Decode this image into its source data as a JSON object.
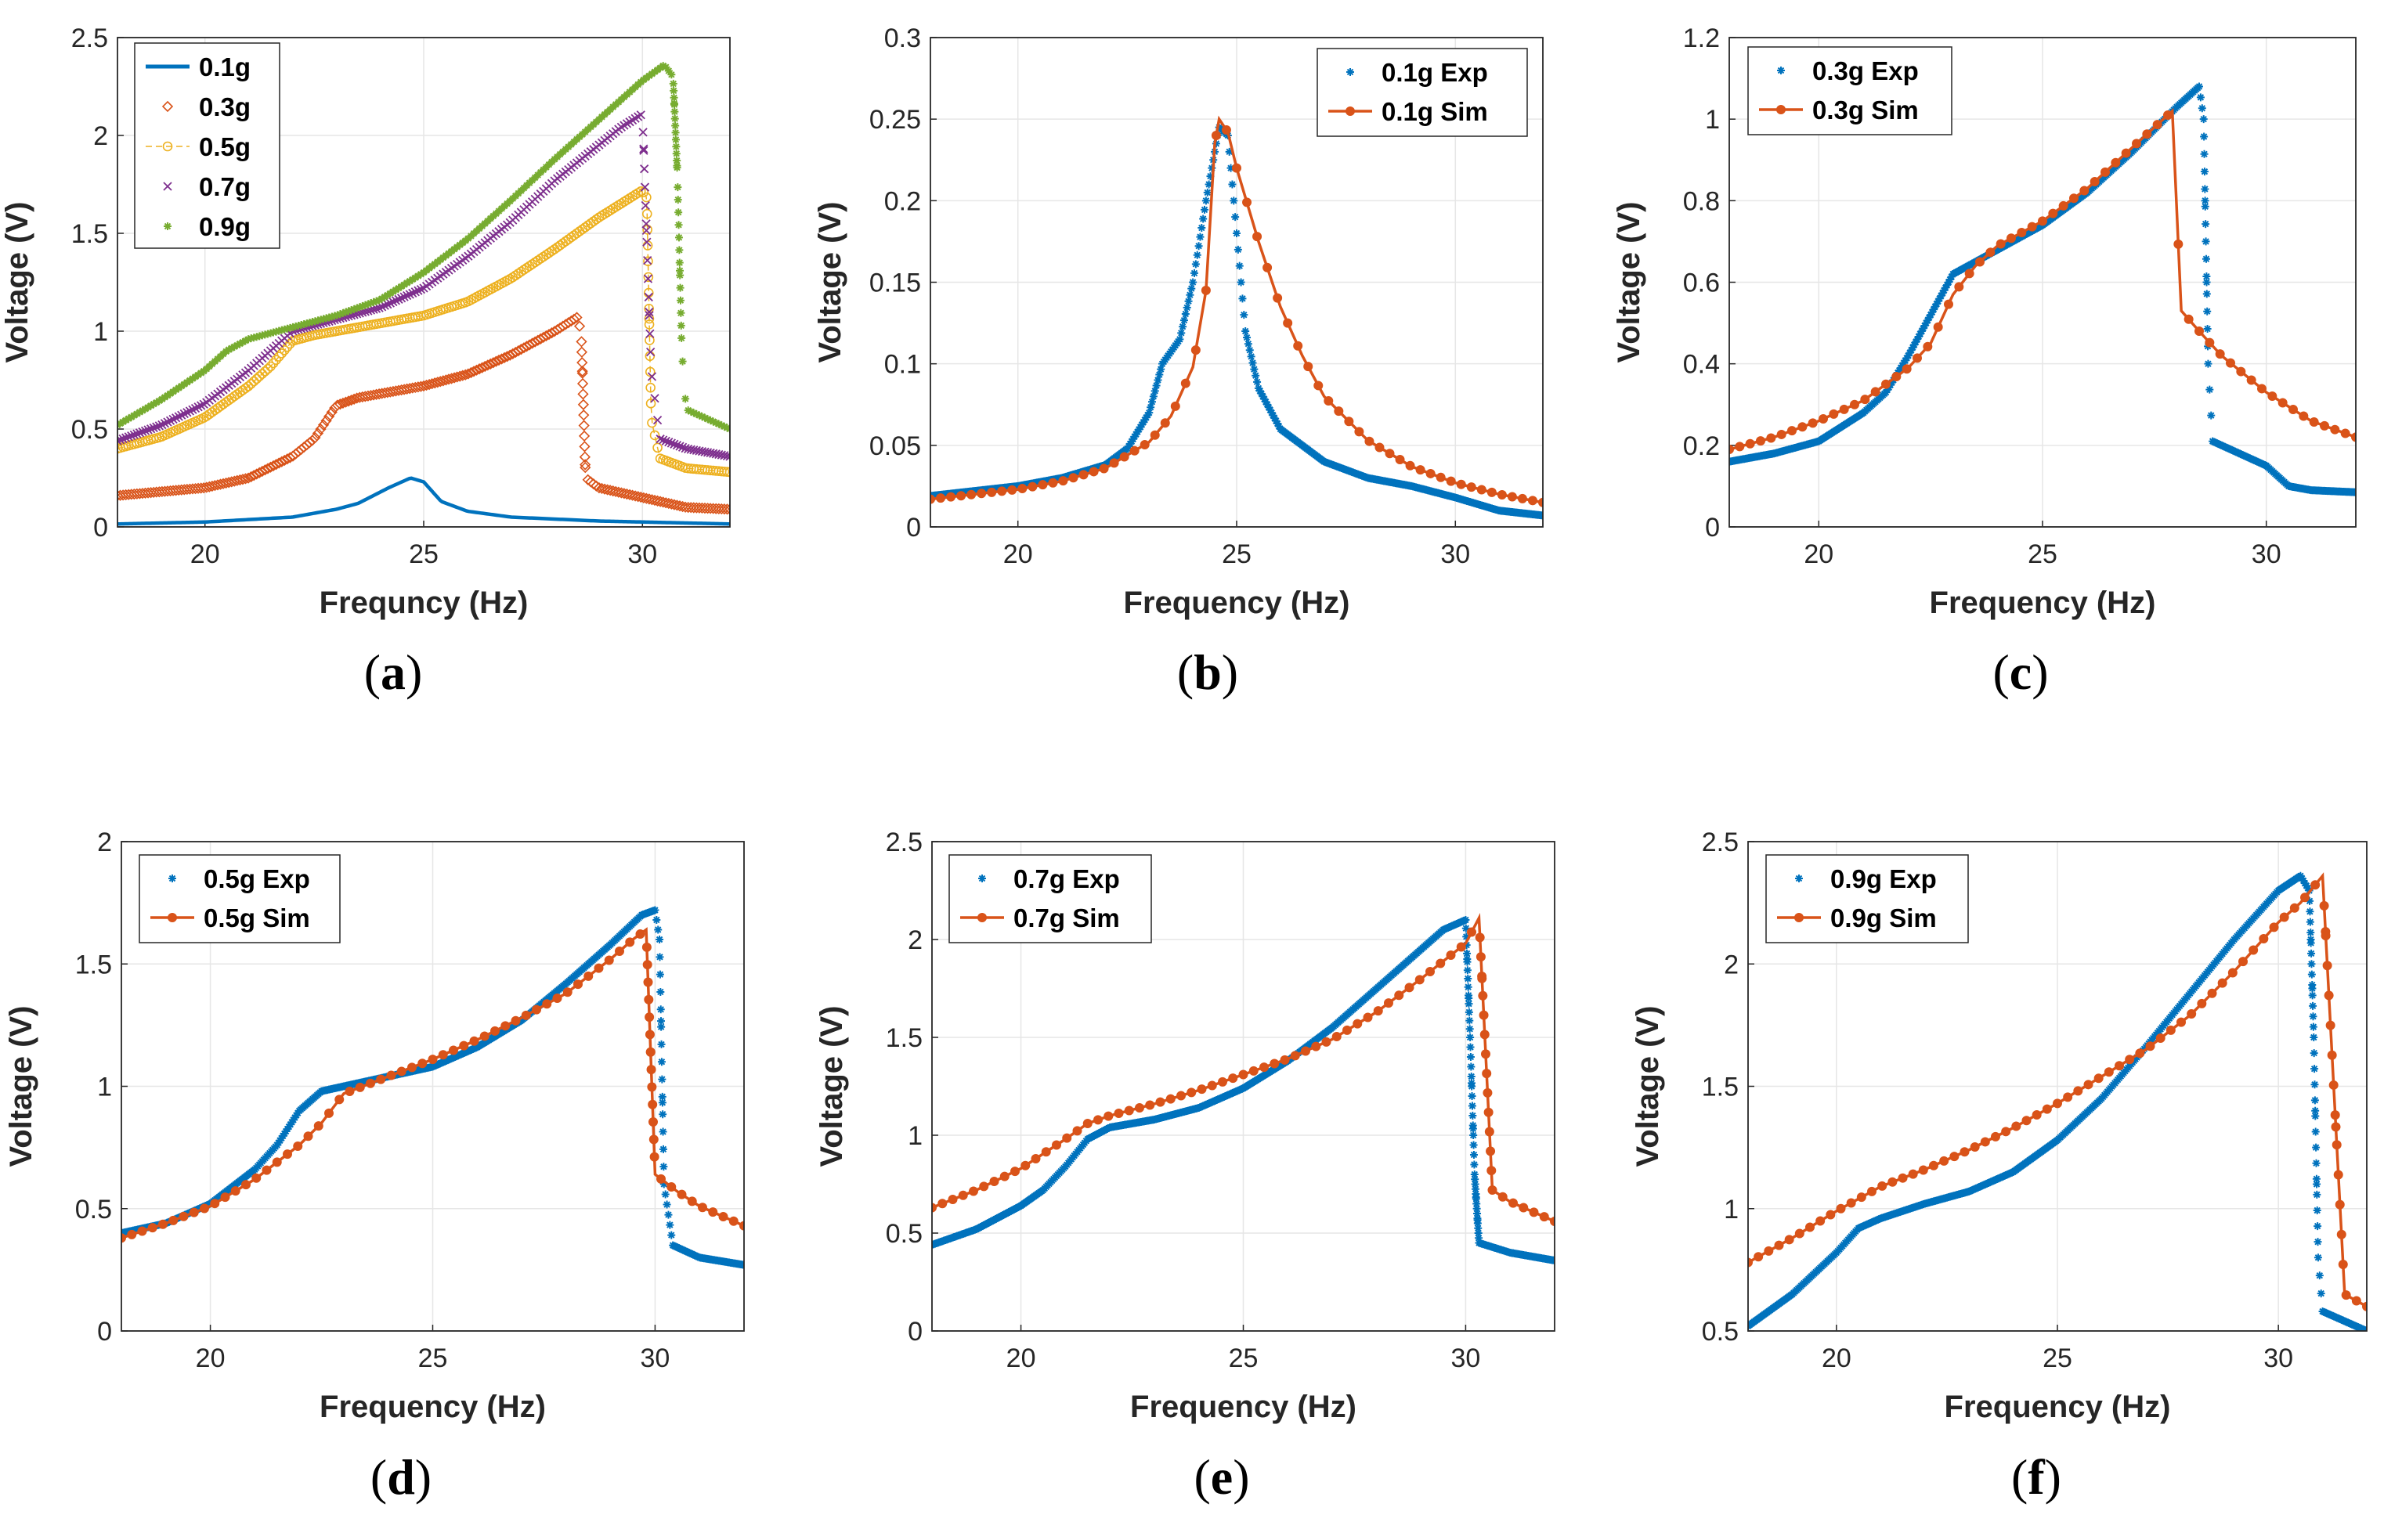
{
  "chart_data": [
    {
      "id": "a",
      "type": "line",
      "panel_label": "a",
      "title": "",
      "xlabel": "Frequncy (Hz)",
      "ylabel": "Voltage (V)",
      "xlim": [
        18,
        32
      ],
      "ylim": [
        0,
        2.5
      ],
      "xticks": [
        "20",
        "25",
        "30"
      ],
      "yticks": [
        "0",
        "0.5",
        "1",
        "1.5",
        "2",
        "2.5"
      ],
      "grid": true,
      "legend_position": "top-left",
      "series": [
        {
          "name": "0.1g",
          "color": "#0072BD",
          "style": "line",
          "x": [
            18,
            20,
            22,
            23,
            23.5,
            24.2,
            24.7,
            25.0,
            25.4,
            26,
            27,
            29,
            32
          ],
          "y": [
            0.015,
            0.025,
            0.05,
            0.09,
            0.12,
            0.2,
            0.25,
            0.23,
            0.13,
            0.08,
            0.05,
            0.03,
            0.015
          ]
        },
        {
          "name": "0.3g",
          "color": "#D95319",
          "style": "markers-diamond",
          "x": [
            18,
            20,
            21,
            22,
            22.5,
            23,
            23.5,
            24,
            25,
            26,
            27,
            28,
            28.5,
            28.6,
            28.7,
            29,
            30,
            31,
            32
          ],
          "y": [
            0.16,
            0.2,
            0.25,
            0.36,
            0.45,
            0.62,
            0.66,
            0.68,
            0.72,
            0.78,
            0.88,
            1.0,
            1.07,
            1.0,
            0.25,
            0.2,
            0.15,
            0.1,
            0.09
          ]
        },
        {
          "name": "0.5g",
          "color": "#EDB120",
          "style": "markers-circle-line",
          "x": [
            18,
            19,
            20,
            21,
            21.5,
            22,
            22.5,
            23,
            24,
            25,
            26,
            27,
            28,
            29,
            30,
            30.1,
            30.2,
            30.4,
            31,
            32
          ],
          "y": [
            0.4,
            0.46,
            0.56,
            0.72,
            0.82,
            0.95,
            0.98,
            1.0,
            1.04,
            1.08,
            1.15,
            1.27,
            1.42,
            1.58,
            1.72,
            1.68,
            0.55,
            0.35,
            0.3,
            0.28
          ]
        },
        {
          "name": "0.7g",
          "color": "#7E2F8E",
          "style": "markers-x",
          "x": [
            18,
            19,
            20,
            21,
            21.5,
            22,
            23,
            24,
            25,
            26,
            27,
            28,
            29,
            29.5,
            30.0,
            30.2,
            30.4,
            31,
            32
          ],
          "y": [
            0.44,
            0.52,
            0.63,
            0.8,
            0.9,
            1.0,
            1.06,
            1.12,
            1.22,
            1.38,
            1.56,
            1.77,
            1.95,
            2.04,
            2.11,
            0.8,
            0.45,
            0.4,
            0.36
          ]
        },
        {
          "name": "0.9g",
          "color": "#77AC30",
          "style": "markers-asterisk",
          "x": [
            18,
            19,
            20,
            20.5,
            21,
            22,
            23,
            24,
            25,
            26,
            27,
            28,
            29,
            30,
            30.5,
            30.7,
            30.8,
            30.9,
            31,
            32
          ],
          "y": [
            0.52,
            0.65,
            0.8,
            0.9,
            0.96,
            1.02,
            1.08,
            1.16,
            1.3,
            1.47,
            1.67,
            1.88,
            2.08,
            2.28,
            2.36,
            2.3,
            1.8,
            0.9,
            0.6,
            0.5
          ]
        }
      ]
    },
    {
      "id": "b",
      "type": "line",
      "panel_label": "b",
      "title": "",
      "xlabel": "Frequency (Hz)",
      "ylabel": "Voltage (V)",
      "xlim": [
        18,
        32
      ],
      "ylim": [
        0,
        0.3
      ],
      "xticks": [
        "20",
        "25",
        "30"
      ],
      "yticks": [
        "0",
        "0.05",
        "0.1",
        "0.15",
        "0.2",
        "0.25",
        "0.3"
      ],
      "grid": true,
      "legend_position": "top-right",
      "series": [
        {
          "name": "0.1g Exp",
          "color": "#0072BD",
          "style": "markers-asterisk-dense",
          "x": [
            18,
            20,
            21,
            22,
            22.5,
            23,
            23.3,
            23.7,
            24,
            24.3,
            24.6,
            24.8,
            25.0,
            25.2,
            25.5,
            26,
            27,
            28,
            29,
            30,
            31,
            32
          ],
          "y": [
            0.019,
            0.025,
            0.03,
            0.038,
            0.048,
            0.07,
            0.1,
            0.115,
            0.15,
            0.2,
            0.245,
            0.24,
            0.18,
            0.12,
            0.085,
            0.06,
            0.04,
            0.03,
            0.025,
            0.018,
            0.01,
            0.007
          ]
        },
        {
          "name": "0.1g Sim",
          "color": "#D95319",
          "style": "line-dot-markers",
          "x": [
            18,
            19,
            20,
            21,
            22,
            23,
            23.5,
            24,
            24.3,
            24.5,
            24.6,
            24.8,
            25,
            25.5,
            26,
            26.5,
            27,
            28,
            29,
            30,
            31,
            32
          ],
          "y": [
            0.017,
            0.02,
            0.023,
            0.028,
            0.036,
            0.052,
            0.068,
            0.098,
            0.145,
            0.235,
            0.25,
            0.242,
            0.22,
            0.175,
            0.135,
            0.105,
            0.08,
            0.053,
            0.037,
            0.027,
            0.02,
            0.015
          ]
        }
      ]
    },
    {
      "id": "c",
      "type": "line",
      "panel_label": "c",
      "title": "",
      "xlabel": "Frequency (Hz)",
      "ylabel": "Voltage (V)",
      "xlim": [
        18,
        32
      ],
      "ylim": [
        0,
        1.2
      ],
      "xticks": [
        "20",
        "25",
        "30"
      ],
      "yticks": [
        "0",
        "0.2",
        "0.4",
        "0.6",
        "0.8",
        "1",
        "1.2"
      ],
      "grid": true,
      "legend_position": "top-left",
      "series": [
        {
          "name": "0.3g Exp",
          "color": "#0072BD",
          "style": "markers-asterisk-dense",
          "x": [
            18,
            19,
            20,
            21,
            21.5,
            22,
            22.5,
            23,
            23.5,
            24,
            25,
            26,
            27,
            28,
            28.5,
            28.6,
            28.7,
            28.8,
            29,
            30,
            30.5,
            31,
            32
          ],
          "y": [
            0.16,
            0.18,
            0.21,
            0.28,
            0.33,
            0.42,
            0.52,
            0.62,
            0.65,
            0.68,
            0.74,
            0.82,
            0.92,
            1.03,
            1.08,
            1.0,
            0.4,
            0.21,
            0.2,
            0.15,
            0.1,
            0.09,
            0.085
          ]
        },
        {
          "name": "0.3g Sim",
          "color": "#D95319",
          "style": "line-dot-markers",
          "x": [
            18,
            19,
            20,
            21,
            22,
            22.5,
            23,
            23.5,
            24,
            25,
            26,
            27,
            27.5,
            27.9,
            28.1,
            28.5,
            29,
            30,
            31,
            32
          ],
          "y": [
            0.19,
            0.22,
            0.26,
            0.31,
            0.39,
            0.45,
            0.57,
            0.64,
            0.69,
            0.75,
            0.83,
            0.93,
            0.98,
            1.02,
            0.53,
            0.48,
            0.42,
            0.33,
            0.26,
            0.22
          ]
        }
      ]
    },
    {
      "id": "d",
      "type": "line",
      "panel_label": "d",
      "title": "",
      "xlabel": "Frequency (Hz)",
      "ylabel": "Voltage (V)",
      "xlim": [
        18,
        32
      ],
      "ylim": [
        0,
        2
      ],
      "xticks": [
        "20",
        "25",
        "30"
      ],
      "yticks": [
        "0",
        "0.5",
        "1",
        "1.5",
        "2"
      ],
      "grid": true,
      "legend_position": "top-left",
      "series": [
        {
          "name": "0.5g Exp",
          "color": "#0072BD",
          "style": "markers-asterisk-dense",
          "x": [
            18,
            19,
            20,
            21,
            21.5,
            22,
            22.5,
            23,
            24,
            25,
            26,
            27,
            28,
            29,
            29.7,
            30.0,
            30.1,
            30.2,
            30.4,
            31,
            32
          ],
          "y": [
            0.4,
            0.44,
            0.52,
            0.66,
            0.76,
            0.9,
            0.98,
            1.0,
            1.04,
            1.08,
            1.16,
            1.27,
            1.42,
            1.58,
            1.7,
            1.72,
            1.6,
            0.6,
            0.35,
            0.3,
            0.27
          ]
        },
        {
          "name": "0.5g Sim",
          "color": "#D95319",
          "style": "line-dot-markers",
          "x": [
            18,
            19,
            20,
            21,
            22,
            22.5,
            23,
            24,
            25,
            26,
            27,
            28,
            29,
            29.5,
            29.8,
            30.0,
            30.5,
            31,
            32
          ],
          "y": [
            0.38,
            0.44,
            0.51,
            0.62,
            0.76,
            0.85,
            0.97,
            1.04,
            1.11,
            1.19,
            1.28,
            1.38,
            1.52,
            1.6,
            1.64,
            0.64,
            0.57,
            0.51,
            0.43
          ]
        }
      ]
    },
    {
      "id": "e",
      "type": "line",
      "panel_label": "e",
      "title": "",
      "xlabel": "Frequency (Hz)",
      "ylabel": "Voltage (V)",
      "xlim": [
        18,
        32
      ],
      "ylim": [
        0,
        2.5
      ],
      "xticks": [
        "20",
        "25",
        "30"
      ],
      "yticks": [
        "0",
        "0.5",
        "1",
        "1.5",
        "2",
        "2.5"
      ],
      "grid": true,
      "legend_position": "top-left",
      "series": [
        {
          "name": "0.7g Exp",
          "color": "#0072BD",
          "style": "markers-asterisk-dense",
          "x": [
            18,
            19,
            20,
            20.5,
            21,
            21.5,
            22,
            23,
            24,
            25,
            26,
            27,
            28,
            29,
            29.5,
            30.0,
            30.1,
            30.2,
            30.3,
            31,
            32
          ],
          "y": [
            0.44,
            0.52,
            0.64,
            0.72,
            0.84,
            0.98,
            1.04,
            1.08,
            1.14,
            1.24,
            1.38,
            1.55,
            1.75,
            1.95,
            2.05,
            2.1,
            1.5,
            0.8,
            0.45,
            0.4,
            0.36
          ]
        },
        {
          "name": "0.7g Sim",
          "color": "#D95319",
          "style": "line-dot-markers",
          "x": [
            18,
            19,
            20,
            21,
            21.5,
            22,
            23,
            24,
            25,
            26,
            27,
            28,
            29,
            30,
            30.3,
            30.6,
            31,
            32
          ],
          "y": [
            0.63,
            0.72,
            0.83,
            0.98,
            1.06,
            1.1,
            1.16,
            1.23,
            1.31,
            1.39,
            1.49,
            1.63,
            1.8,
            1.98,
            2.11,
            0.72,
            0.66,
            0.56
          ]
        }
      ]
    },
    {
      "id": "f",
      "type": "line",
      "panel_label": "f",
      "title": "",
      "xlabel": "Frequency (Hz)",
      "ylabel": "Voltage (V)",
      "xlim": [
        18,
        32
      ],
      "ylim": [
        0.5,
        2.5
      ],
      "xticks": [
        "20",
        "25",
        "30"
      ],
      "yticks": [
        "0.5",
        "1",
        "1.5",
        "2",
        "2.5"
      ],
      "grid": true,
      "legend_position": "top-left",
      "series": [
        {
          "name": "0.9g Exp",
          "color": "#0072BD",
          "style": "markers-asterisk-dense",
          "x": [
            18,
            19,
            20,
            20.5,
            21,
            22,
            23,
            24,
            25,
            26,
            27,
            28,
            29,
            30,
            30.5,
            30.7,
            30.8,
            30.9,
            31,
            32
          ],
          "y": [
            0.52,
            0.65,
            0.82,
            0.92,
            0.96,
            1.02,
            1.07,
            1.15,
            1.28,
            1.45,
            1.66,
            1.88,
            2.1,
            2.3,
            2.36,
            2.3,
            1.7,
            0.8,
            0.58,
            0.5
          ]
        },
        {
          "name": "0.9g Sim",
          "color": "#D95319",
          "style": "line-dot-markers",
          "x": [
            18,
            19,
            20,
            21,
            22,
            23,
            24,
            25,
            26,
            27,
            28,
            29,
            30,
            30.5,
            31.0,
            31.5,
            32
          ],
          "y": [
            0.78,
            0.88,
            0.99,
            1.09,
            1.16,
            1.24,
            1.33,
            1.43,
            1.54,
            1.65,
            1.79,
            1.97,
            2.17,
            2.25,
            2.36,
            0.65,
            0.6
          ]
        }
      ]
    }
  ]
}
